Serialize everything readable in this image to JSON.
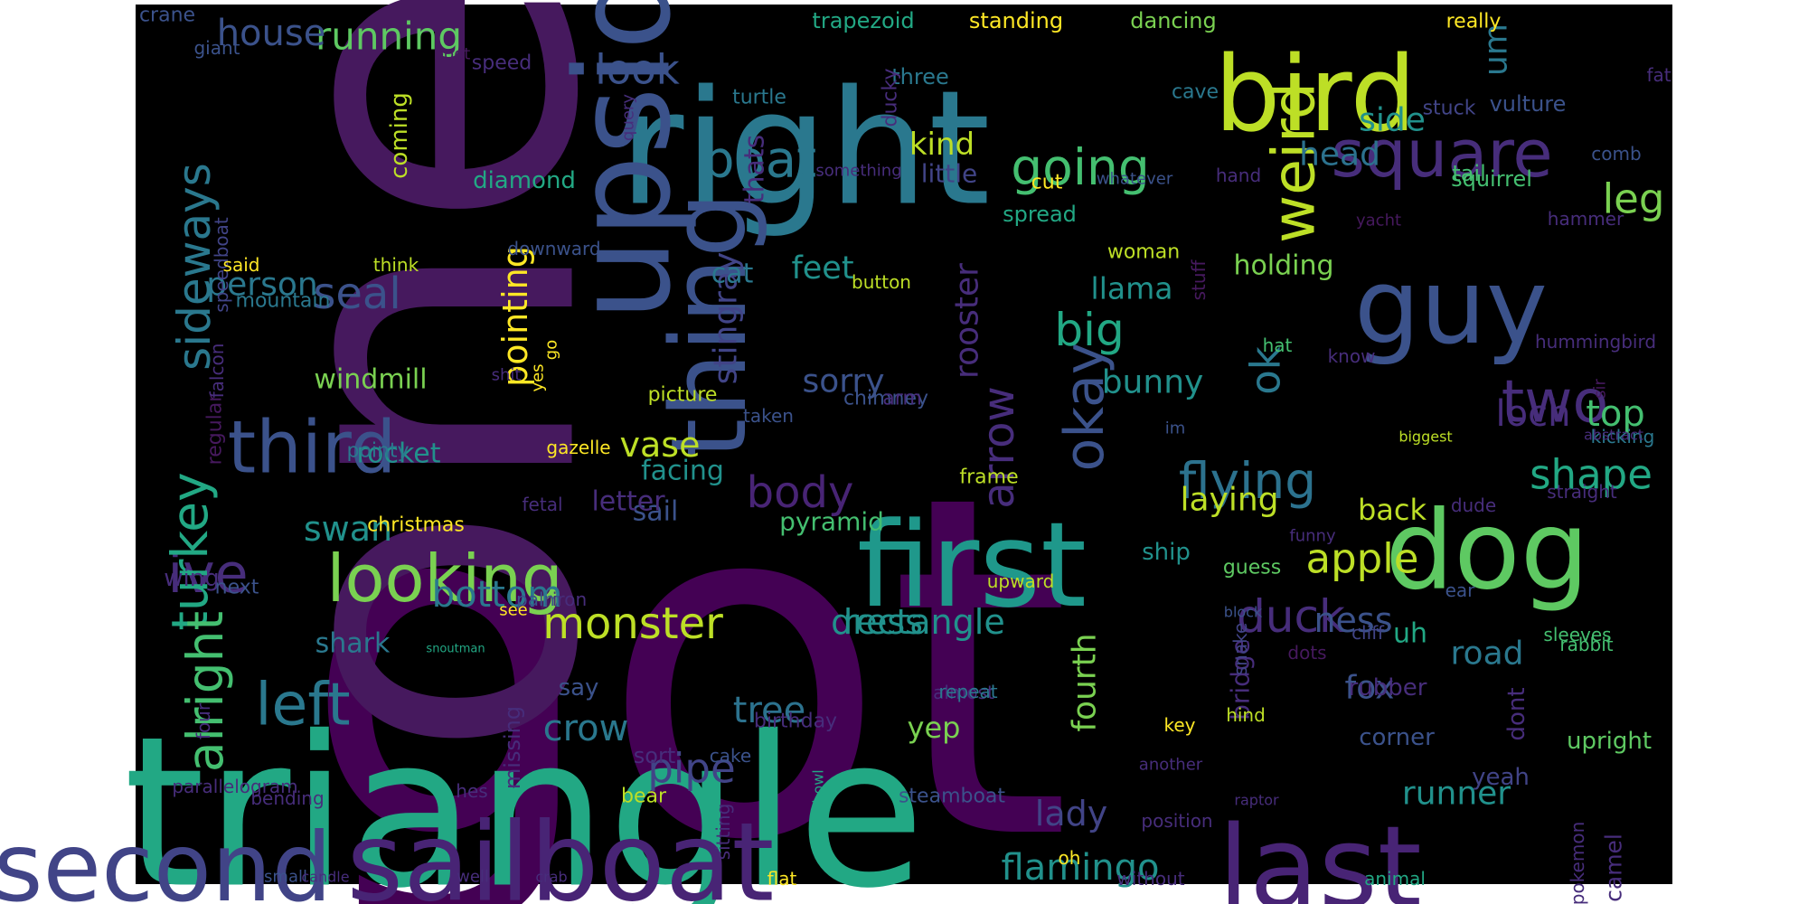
{
  "words": [
    {
      "text": "got",
      "color": "#440154"
    },
    {
      "text": "one",
      "color": "#46195e"
    },
    {
      "text": "triangle",
      "color": "#22a884"
    },
    {
      "text": "right",
      "color": "#2a788e"
    },
    {
      "text": "upside",
      "color": "#3b528b"
    },
    {
      "text": "bird",
      "color": "#bddf26"
    },
    {
      "text": "thing",
      "color": "#3b528b"
    },
    {
      "text": "first",
      "color": "#1f988b"
    },
    {
      "text": "dog",
      "color": "#5ec962"
    },
    {
      "text": "guy",
      "color": "#3b528b"
    },
    {
      "text": "sailboat",
      "color": "#482475"
    },
    {
      "text": "second",
      "color": "#414487"
    },
    {
      "text": "last",
      "color": "#482475"
    },
    {
      "text": "weird",
      "color": "#bddf26"
    },
    {
      "text": "square",
      "color": "#472d7b"
    },
    {
      "text": "looking",
      "color": "#7ad151"
    },
    {
      "text": "third",
      "color": "#3b528b"
    },
    {
      "text": "ive",
      "color": "#472d7b"
    },
    {
      "text": "two",
      "color": "#472d7b"
    },
    {
      "text": "sideways",
      "color": "#2a788e"
    },
    {
      "text": "turkey",
      "color": "#22a884"
    },
    {
      "text": "left",
      "color": "#2a788e"
    },
    {
      "text": "alright",
      "color": "#44bf70"
    },
    {
      "text": "monster",
      "color": "#bddf26"
    },
    {
      "text": "okay",
      "color": "#3b528b"
    },
    {
      "text": "boat",
      "color": "#2a788e"
    },
    {
      "text": "going",
      "color": "#44bf70"
    },
    {
      "text": "flying",
      "color": "#2c728e"
    },
    {
      "text": "duck",
      "color": "#472d7b"
    },
    {
      "text": "body",
      "color": "#482475"
    },
    {
      "text": "arrow",
      "color": "#472d7b"
    },
    {
      "text": "seal",
      "color": "#3b528b"
    },
    {
      "text": "big",
      "color": "#22a884"
    },
    {
      "text": "look",
      "color": "#3b528b"
    },
    {
      "text": "running",
      "color": "#5ec962"
    },
    {
      "text": "house",
      "color": "#3b528b"
    },
    {
      "text": "apple",
      "color": "#bddf26"
    },
    {
      "text": "shape",
      "color": "#22a884"
    },
    {
      "text": "leg",
      "color": "#7ad151"
    },
    {
      "text": "ok",
      "color": "#2a788e"
    },
    {
      "text": "pipe",
      "color": "#414487"
    },
    {
      "text": "tree",
      "color": "#2c728e"
    },
    {
      "text": "crow",
      "color": "#2a788e"
    },
    {
      "text": "bottom",
      "color": "#2a788e"
    },
    {
      "text": "rectangle",
      "color": "#21918c"
    },
    {
      "text": "dress",
      "color": "#21918c"
    },
    {
      "text": "loch",
      "color": "#472d7b"
    },
    {
      "text": "top",
      "color": "#44bf70"
    },
    {
      "text": "flamingo",
      "color": "#21918c"
    },
    {
      "text": "lady",
      "color": "#414487"
    },
    {
      "text": "runner",
      "color": "#21918c"
    },
    {
      "text": "ness",
      "color": "#3b528b"
    },
    {
      "text": "fox",
      "color": "#3b528b"
    },
    {
      "text": "road",
      "color": "#2a788e"
    },
    {
      "text": "stingray",
      "color": "#414487"
    },
    {
      "text": "person",
      "color": "#2a788e"
    },
    {
      "text": "swan",
      "color": "#21918c"
    },
    {
      "text": "pointing",
      "color": "#fde725"
    },
    {
      "text": "vase",
      "color": "#bddf26"
    },
    {
      "text": "sorry",
      "color": "#3b528b"
    },
    {
      "text": "bunny",
      "color": "#21918c"
    },
    {
      "text": "laying",
      "color": "#bddf26"
    },
    {
      "text": "fourth",
      "color": "#7ad151"
    },
    {
      "text": "rooster",
      "color": "#472d7b"
    },
    {
      "text": "side",
      "color": "#21918c"
    },
    {
      "text": "head",
      "color": "#2c728e"
    },
    {
      "text": "um",
      "color": "#2a788e"
    },
    {
      "text": "back",
      "color": "#bddf26"
    },
    {
      "text": "feet",
      "color": "#21918c"
    },
    {
      "text": "llama",
      "color": "#21918c"
    },
    {
      "text": "kind",
      "color": "#bddf26"
    },
    {
      "text": "holding",
      "color": "#7ad151"
    },
    {
      "text": "sail",
      "color": "#3b528b"
    },
    {
      "text": "letter",
      "color": "#472d7b"
    },
    {
      "text": "facing",
      "color": "#21918c"
    },
    {
      "text": "thats",
      "color": "#472d7b"
    },
    {
      "text": "shark",
      "color": "#2a788e"
    },
    {
      "text": "rocket",
      "color": "#21918c"
    },
    {
      "text": "windmill",
      "color": "#7ad151"
    },
    {
      "text": "coming",
      "color": "#bddf26"
    },
    {
      "text": "diamond",
      "color": "#22a884"
    },
    {
      "text": "cat",
      "color": "#2a788e"
    },
    {
      "text": "pyramid",
      "color": "#44bf70"
    },
    {
      "text": "yep",
      "color": "#7ad151"
    },
    {
      "text": "little",
      "color": "#414487"
    },
    {
      "text": "uh",
      "color": "#22a884"
    },
    {
      "text": "bridge",
      "color": "#472d7b"
    },
    {
      "text": "rubber",
      "color": "#472d7b"
    },
    {
      "text": "corner",
      "color": "#3b528b"
    },
    {
      "text": "yeah",
      "color": "#414487"
    },
    {
      "text": "upright",
      "color": "#5ec962"
    },
    {
      "text": "dont",
      "color": "#472d7b"
    },
    {
      "text": "wing",
      "color": "#472d7b"
    },
    {
      "text": "regular",
      "color": "#46195e"
    },
    {
      "text": "ship",
      "color": "#21918c"
    },
    {
      "text": "say",
      "color": "#3b528b"
    },
    {
      "text": "missing",
      "color": "#472d7b"
    },
    {
      "text": "tail",
      "color": "#44bf70"
    },
    {
      "text": "three",
      "color": "#2a788e"
    },
    {
      "text": "trapezoid",
      "color": "#22a884"
    },
    {
      "text": "standing",
      "color": "#fde725"
    },
    {
      "text": "dancing",
      "color": "#7ad151"
    },
    {
      "text": "cut",
      "color": "#fde725"
    },
    {
      "text": "spread",
      "color": "#22a884"
    },
    {
      "text": "woman",
      "color": "#bddf26"
    },
    {
      "text": "button",
      "color": "#bddf26"
    },
    {
      "text": "frame",
      "color": "#bddf26"
    },
    {
      "text": "vulture",
      "color": "#3b528b"
    },
    {
      "text": "squirrel",
      "color": "#44bf70"
    },
    {
      "text": "really",
      "color": "#fde725"
    },
    {
      "text": "stuck",
      "color": "#414487"
    },
    {
      "text": "cave",
      "color": "#2a788e"
    },
    {
      "text": "turtle",
      "color": "#2a788e"
    },
    {
      "text": "ducky",
      "color": "#472d7b"
    },
    {
      "text": "speed",
      "color": "#472d7b"
    },
    {
      "text": "crane",
      "color": "#3b528b"
    },
    {
      "text": "giant",
      "color": "#3b528b"
    },
    {
      "text": "boot",
      "color": "#46195e"
    },
    {
      "text": "fat",
      "color": "#472d7b"
    },
    {
      "text": "speedboat",
      "color": "#414487"
    },
    {
      "text": "said",
      "color": "#fde725"
    },
    {
      "text": "think",
      "color": "#bddf26"
    },
    {
      "text": "mountain",
      "color": "#2a788e"
    },
    {
      "text": "downward",
      "color": "#3b528b"
    },
    {
      "text": "falcon",
      "color": "#472d7b"
    },
    {
      "text": "picture",
      "color": "#bddf26"
    },
    {
      "text": "chimney",
      "color": "#3b528b"
    },
    {
      "text": "arm",
      "color": "#472d7b"
    },
    {
      "text": "taken",
      "color": "#3b528b"
    },
    {
      "text": "gazelle",
      "color": "#fde725"
    },
    {
      "text": "pointy",
      "color": "#2a788e"
    },
    {
      "text": "christmas",
      "color": "#fde725"
    },
    {
      "text": "fetal",
      "color": "#472d7b"
    },
    {
      "text": "next",
      "color": "#3b528b"
    },
    {
      "text": "palm",
      "color": "#3b528b"
    },
    {
      "text": "iron",
      "color": "#472d7b"
    },
    {
      "text": "see",
      "color": "#fde725"
    },
    {
      "text": "snoutman",
      "color": "#22a884"
    },
    {
      "text": "bending",
      "color": "#472d7b"
    },
    {
      "text": "hes",
      "color": "#472d7b"
    },
    {
      "text": "parallelogram",
      "color": "#472d7b"
    },
    {
      "text": "four",
      "color": "#472d7b"
    },
    {
      "text": "small",
      "color": "#3b528b"
    },
    {
      "text": "candle",
      "color": "#472d7b"
    },
    {
      "text": "well",
      "color": "#472d7b"
    },
    {
      "text": "crab",
      "color": "#472d7b"
    },
    {
      "text": "sitting",
      "color": "#472d7b"
    },
    {
      "text": "bowl",
      "color": "#22a884"
    },
    {
      "text": "sort",
      "color": "#472d7b"
    },
    {
      "text": "cake",
      "color": "#3b528b"
    },
    {
      "text": "birthday",
      "color": "#472d7b"
    },
    {
      "text": "almost",
      "color": "#472d7b"
    },
    {
      "text": "repeat",
      "color": "#2a788e"
    },
    {
      "text": "bear",
      "color": "#bddf26"
    },
    {
      "text": "steamboat",
      "color": "#3b528b"
    },
    {
      "text": "flat",
      "color": "#fde725"
    },
    {
      "text": "oh",
      "color": "#fde725"
    },
    {
      "text": "without",
      "color": "#472d7b"
    },
    {
      "text": "position",
      "color": "#472d7b"
    },
    {
      "text": "animal",
      "color": "#22a884"
    },
    {
      "text": "another",
      "color": "#472d7b"
    },
    {
      "text": "key",
      "color": "#fde725"
    },
    {
      "text": "hind",
      "color": "#bddf26"
    },
    {
      "text": "guess",
      "color": "#5ec962"
    },
    {
      "text": "snake",
      "color": "#414487"
    },
    {
      "text": "upward",
      "color": "#bddf26"
    },
    {
      "text": "ear",
      "color": "#3b528b"
    },
    {
      "text": "block",
      "color": "#3b528b"
    },
    {
      "text": "dots",
      "color": "#46195e"
    },
    {
      "text": "cliff",
      "color": "#414487"
    },
    {
      "text": "rabbit",
      "color": "#44bf70"
    },
    {
      "text": "sleeves",
      "color": "#44bf70"
    },
    {
      "text": "dude",
      "color": "#472d7b"
    },
    {
      "text": "straight",
      "color": "#472d7b"
    },
    {
      "text": "kicking",
      "color": "#2a788e"
    },
    {
      "text": "abstract",
      "color": "#472d7b"
    },
    {
      "text": "biggest",
      "color": "#bddf26"
    },
    {
      "text": "funny",
      "color": "#472d7b"
    },
    {
      "text": "im",
      "color": "#3b528b"
    },
    {
      "text": "hat",
      "color": "#44bf70"
    },
    {
      "text": "know",
      "color": "#472d7b"
    },
    {
      "text": "stuff",
      "color": "#46195e"
    },
    {
      "text": "hummingbird",
      "color": "#472d7b"
    },
    {
      "text": "sir",
      "color": "#46195e"
    },
    {
      "text": "yacht",
      "color": "#46195e"
    },
    {
      "text": "hammer",
      "color": "#472d7b"
    },
    {
      "text": "comb",
      "color": "#3b528b"
    },
    {
      "text": "hand",
      "color": "#472d7b"
    },
    {
      "text": "whatever",
      "color": "#3b528b"
    },
    {
      "text": "something",
      "color": "#472d7b"
    },
    {
      "text": "query",
      "color": "#472d7b"
    },
    {
      "text": "shit",
      "color": "#472d7b"
    },
    {
      "text": "yes",
      "color": "#fde725"
    },
    {
      "text": "go",
      "color": "#fde725"
    },
    {
      "text": "raptor",
      "color": "#472d7b"
    },
    {
      "text": "camel",
      "color": "#472d7b"
    },
    {
      "text": "pokemon",
      "color": "#472d7b"
    }
  ]
}
